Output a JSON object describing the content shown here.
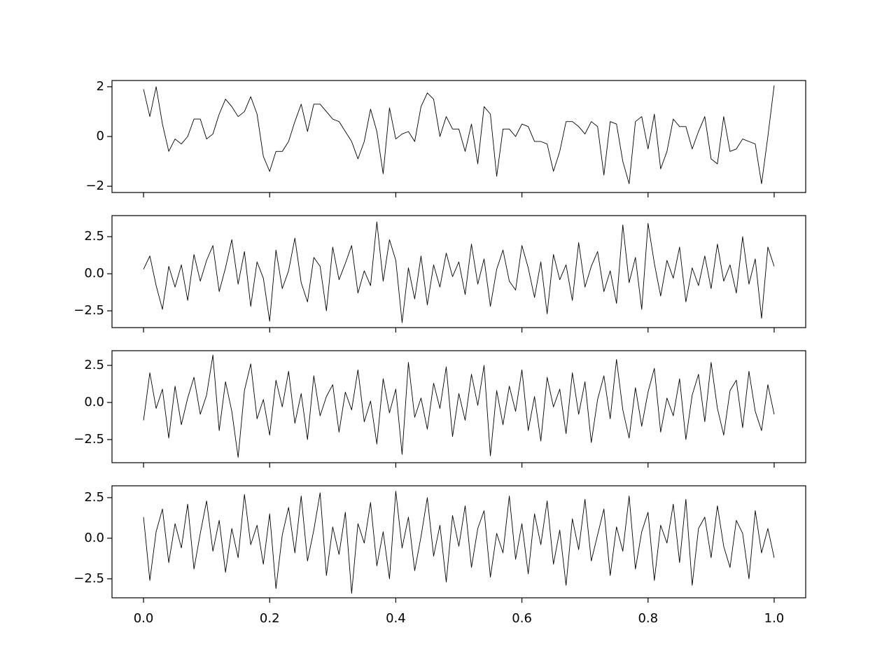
{
  "chart_data": [
    {
      "type": "line",
      "color": "#000000",
      "xlim": [
        -0.05,
        1.05
      ],
      "ylim": [
        -2.25,
        2.25
      ],
      "xticks": [
        0,
        0.2,
        0.4,
        0.6,
        0.8,
        1
      ],
      "xtick_labels": false,
      "yticks": [
        {
          "value": -2,
          "label": "−2"
        },
        0,
        2
      ],
      "x": [
        0,
        0.01,
        0.02,
        0.03,
        0.04,
        0.05,
        0.06,
        0.07,
        0.08,
        0.09,
        0.1,
        0.11,
        0.12,
        0.13,
        0.14,
        0.15,
        0.16,
        0.17,
        0.18,
        0.19,
        0.2,
        0.21,
        0.22,
        0.23,
        0.24,
        0.25,
        0.26,
        0.27,
        0.28,
        0.29,
        0.3,
        0.31,
        0.32,
        0.33,
        0.34,
        0.35,
        0.36,
        0.37,
        0.38,
        0.39,
        0.4,
        0.41,
        0.42,
        0.43,
        0.44,
        0.45,
        0.46,
        0.47,
        0.48,
        0.49,
        0.5,
        0.51,
        0.52,
        0.53,
        0.54,
        0.55,
        0.56,
        0.57,
        0.58,
        0.59,
        0.6,
        0.61,
        0.62,
        0.63,
        0.64,
        0.65,
        0.66,
        0.67,
        0.68,
        0.69,
        0.7,
        0.71,
        0.72,
        0.73,
        0.74,
        0.75,
        0.76,
        0.77,
        0.78,
        0.79,
        0.8,
        0.81,
        0.82,
        0.83,
        0.84,
        0.85,
        0.86,
        0.87,
        0.88,
        0.89,
        0.9,
        0.91,
        0.92,
        0.93,
        0.94,
        0.95,
        0.96,
        0.97,
        0.98,
        0.99,
        1
      ],
      "values": [
        1.9,
        0.8,
        2.0,
        0.5,
        -0.6,
        -0.1,
        -0.3,
        0.0,
        0.7,
        0.7,
        -0.1,
        0.1,
        0.9,
        1.5,
        1.2,
        0.8,
        1.0,
        1.6,
        0.9,
        -0.8,
        -1.4,
        -0.6,
        -0.6,
        -0.2,
        0.6,
        1.3,
        0.2,
        1.3,
        1.3,
        1.0,
        0.7,
        0.6,
        0.2,
        -0.2,
        -0.9,
        -0.2,
        1.1,
        0.2,
        -1.5,
        1.15,
        -0.1,
        0.1,
        0.2,
        -0.2,
        1.2,
        1.75,
        1.5,
        0.0,
        0.8,
        0.3,
        0.3,
        -0.6,
        0.5,
        -1.1,
        1.2,
        0.9,
        -1.6,
        0.3,
        0.3,
        0.0,
        0.5,
        0.4,
        -0.2,
        -0.2,
        -0.3,
        -1.4,
        -0.6,
        0.6,
        0.6,
        0.4,
        0.1,
        0.6,
        0.4,
        -1.55,
        0.6,
        0.5,
        -1.0,
        -1.9,
        0.6,
        0.8,
        -0.5,
        0.9,
        -1.3,
        -0.6,
        0.7,
        0.4,
        0.4,
        -0.5,
        0.2,
        0.8,
        -0.9,
        -1.1,
        0.8,
        -0.6,
        -0.5,
        -0.1,
        -0.2,
        -0.3,
        -1.9,
        0.0,
        2.05
      ]
    },
    {
      "type": "line",
      "color": "#000000",
      "xlim": [
        -0.05,
        1.05
      ],
      "ylim": [
        -3.63,
        3.92
      ],
      "xticks": [
        0,
        0.2,
        0.4,
        0.6,
        0.8,
        1
      ],
      "xtick_labels": false,
      "yticks": [
        {
          "value": -2.5,
          "label": "−2.5"
        },
        {
          "value": 0,
          "label": "0.0"
        },
        2.5
      ],
      "x": [
        0,
        0.01,
        0.02,
        0.03,
        0.04,
        0.05,
        0.06,
        0.07,
        0.08,
        0.09,
        0.1,
        0.11,
        0.12,
        0.13,
        0.14,
        0.15,
        0.16,
        0.17,
        0.18,
        0.19,
        0.2,
        0.21,
        0.22,
        0.23,
        0.24,
        0.25,
        0.26,
        0.27,
        0.28,
        0.29,
        0.3,
        0.31,
        0.32,
        0.33,
        0.34,
        0.35,
        0.36,
        0.37,
        0.38,
        0.39,
        0.4,
        0.41,
        0.42,
        0.43,
        0.44,
        0.45,
        0.46,
        0.47,
        0.48,
        0.49,
        0.5,
        0.51,
        0.52,
        0.53,
        0.54,
        0.55,
        0.56,
        0.57,
        0.58,
        0.59,
        0.6,
        0.61,
        0.62,
        0.63,
        0.64,
        0.65,
        0.66,
        0.67,
        0.68,
        0.69,
        0.7,
        0.71,
        0.72,
        0.73,
        0.74,
        0.75,
        0.76,
        0.77,
        0.78,
        0.79,
        0.8,
        0.81,
        0.82,
        0.83,
        0.84,
        0.85,
        0.86,
        0.87,
        0.88,
        0.89,
        0.9,
        0.91,
        0.92,
        0.93,
        0.94,
        0.95,
        0.96,
        0.97,
        0.98,
        0.99,
        1
      ],
      "values": [
        0.3,
        1.2,
        -0.8,
        -2.4,
        0.5,
        -0.9,
        0.6,
        -1.8,
        1.3,
        -0.5,
        0.9,
        1.9,
        -1.2,
        0.4,
        2.3,
        -0.7,
        1.5,
        -2.2,
        0.8,
        -0.3,
        -3.2,
        1.6,
        -1.0,
        0.2,
        2.4,
        -0.6,
        -1.9,
        1.1,
        0.5,
        -2.5,
        1.8,
        -0.4,
        0.7,
        1.9,
        -1.3,
        0.2,
        -0.8,
        3.5,
        -0.5,
        2.3,
        0.9,
        -3.3,
        0.4,
        -1.7,
        1.2,
        -2.1,
        0.6,
        -0.9,
        1.4,
        -0.2,
        0.8,
        -1.4,
        2.0,
        -0.7,
        1.0,
        -2.2,
        0.3,
        1.6,
        -0.5,
        -1.1,
        1.9,
        0.4,
        -1.6,
        0.8,
        -2.7,
        1.3,
        -0.4,
        0.6,
        -1.8,
        2.1,
        -0.9,
        0.5,
        1.5,
        -1.2,
        0.2,
        -2.0,
        3.3,
        -0.6,
        1.1,
        -2.4,
        3.4,
        0.7,
        -1.5,
        0.9,
        -0.3,
        1.8,
        -1.9,
        0.4,
        -0.8,
        1.2,
        -1.0,
        2.0,
        -0.5,
        0.6,
        -1.3,
        2.5,
        -0.7,
        1.0,
        -3.0,
        1.8,
        0.5
      ]
    },
    {
      "type": "line",
      "color": "#000000",
      "xlim": [
        -0.05,
        1.05
      ],
      "ylim": [
        -4.06,
        3.49
      ],
      "xticks": [
        0,
        0.2,
        0.4,
        0.6,
        0.8,
        1
      ],
      "xtick_labels": false,
      "yticks": [
        {
          "value": -2.5,
          "label": "−2.5"
        },
        {
          "value": 0,
          "label": "0.0"
        },
        2.5
      ],
      "x": [
        0,
        0.01,
        0.02,
        0.03,
        0.04,
        0.05,
        0.06,
        0.07,
        0.08,
        0.09,
        0.1,
        0.11,
        0.12,
        0.13,
        0.14,
        0.15,
        0.16,
        0.17,
        0.18,
        0.19,
        0.2,
        0.21,
        0.22,
        0.23,
        0.24,
        0.25,
        0.26,
        0.27,
        0.28,
        0.29,
        0.3,
        0.31,
        0.32,
        0.33,
        0.34,
        0.35,
        0.36,
        0.37,
        0.38,
        0.39,
        0.4,
        0.41,
        0.42,
        0.43,
        0.44,
        0.45,
        0.46,
        0.47,
        0.48,
        0.49,
        0.5,
        0.51,
        0.52,
        0.53,
        0.54,
        0.55,
        0.56,
        0.57,
        0.58,
        0.59,
        0.6,
        0.61,
        0.62,
        0.63,
        0.64,
        0.65,
        0.66,
        0.67,
        0.68,
        0.69,
        0.7,
        0.71,
        0.72,
        0.73,
        0.74,
        0.75,
        0.76,
        0.77,
        0.78,
        0.79,
        0.8,
        0.81,
        0.82,
        0.83,
        0.84,
        0.85,
        0.86,
        0.87,
        0.88,
        0.89,
        0.9,
        0.91,
        0.92,
        0.93,
        0.94,
        0.95,
        0.96,
        0.97,
        0.98,
        0.99,
        1
      ],
      "values": [
        -1.2,
        2.0,
        -0.4,
        0.9,
        -2.4,
        1.1,
        -1.5,
        0.3,
        1.7,
        -0.8,
        0.5,
        3.2,
        -1.9,
        1.4,
        -0.6,
        -3.7,
        0.8,
        2.6,
        -1.1,
        0.2,
        -2.2,
        1.5,
        -0.3,
        2.1,
        -1.4,
        0.6,
        -2.5,
        1.8,
        -0.9,
        0.4,
        1.2,
        -2.0,
        0.7,
        -0.5,
        2.2,
        -1.3,
        0.1,
        -2.8,
        1.6,
        -0.7,
        0.9,
        -3.5,
        2.7,
        -1.0,
        0.3,
        -1.8,
        1.3,
        -0.4,
        2.4,
        -2.3,
        0.6,
        -1.2,
        1.9,
        -0.2,
        2.5,
        -3.6,
        0.8,
        -1.5,
        1.1,
        -0.6,
        2.2,
        -1.9,
        0.4,
        -2.6,
        1.7,
        -0.3,
        0.9,
        -2.1,
        2.0,
        -0.8,
        1.4,
        -2.7,
        0.2,
        1.8,
        -1.1,
        2.9,
        -0.5,
        -2.4,
        1.0,
        -1.6,
        0.7,
        2.3,
        -2.0,
        0.3,
        -0.9,
        1.6,
        -2.5,
        0.5,
        1.9,
        -1.3,
        2.7,
        -0.4,
        -2.2,
        0.8,
        1.5,
        -1.7,
        2.1,
        -0.6,
        -1.9,
        1.2,
        -0.8
      ]
    },
    {
      "type": "line",
      "color": "#000000",
      "xlim": [
        -0.05,
        1.05
      ],
      "ylim": [
        -3.67,
        3.23
      ],
      "xticks": [
        {
          "value": 0,
          "label": "0.0"
        },
        0.2,
        0.4,
        0.6,
        0.8,
        {
          "value": 1,
          "label": "1.0"
        }
      ],
      "xtick_labels": true,
      "yticks": [
        {
          "value": -2.5,
          "label": "−2.5"
        },
        {
          "value": 0,
          "label": "0.0"
        },
        2.5
      ],
      "x": [
        0,
        0.01,
        0.02,
        0.03,
        0.04,
        0.05,
        0.06,
        0.07,
        0.08,
        0.09,
        0.1,
        0.11,
        0.12,
        0.13,
        0.14,
        0.15,
        0.16,
        0.17,
        0.18,
        0.19,
        0.2,
        0.21,
        0.22,
        0.23,
        0.24,
        0.25,
        0.26,
        0.27,
        0.28,
        0.29,
        0.3,
        0.31,
        0.32,
        0.33,
        0.34,
        0.35,
        0.36,
        0.37,
        0.38,
        0.39,
        0.4,
        0.41,
        0.42,
        0.43,
        0.44,
        0.45,
        0.46,
        0.47,
        0.48,
        0.49,
        0.5,
        0.51,
        0.52,
        0.53,
        0.54,
        0.55,
        0.56,
        0.57,
        0.58,
        0.59,
        0.6,
        0.61,
        0.62,
        0.63,
        0.64,
        0.65,
        0.66,
        0.67,
        0.68,
        0.69,
        0.7,
        0.71,
        0.72,
        0.73,
        0.74,
        0.75,
        0.76,
        0.77,
        0.78,
        0.79,
        0.8,
        0.81,
        0.82,
        0.83,
        0.84,
        0.85,
        0.86,
        0.87,
        0.88,
        0.89,
        0.9,
        0.91,
        0.92,
        0.93,
        0.94,
        0.95,
        0.96,
        0.97,
        0.98,
        0.99,
        1
      ],
      "values": [
        1.3,
        -2.6,
        0.4,
        1.8,
        -1.5,
        0.9,
        -0.6,
        2.1,
        -1.9,
        0.3,
        2.3,
        -0.8,
        1.1,
        -2.1,
        0.6,
        -1.2,
        2.7,
        -0.4,
        0.8,
        -1.6,
        1.5,
        -3.1,
        0.2,
        1.9,
        -0.9,
        2.6,
        -1.4,
        0.5,
        2.8,
        -2.3,
        0.7,
        -1.0,
        1.6,
        -3.4,
        0.9,
        -0.3,
        2.2,
        -1.7,
        0.4,
        -2.5,
        2.9,
        -0.6,
        1.3,
        -2.0,
        0.1,
        2.5,
        -1.1,
        0.8,
        -2.7,
        1.4,
        -0.5,
        2.0,
        -1.8,
        0.6,
        1.7,
        -2.4,
        0.3,
        -0.9,
        2.6,
        -1.3,
        0.9,
        -2.2,
        1.5,
        -0.4,
        2.3,
        -1.6,
        0.5,
        -2.9,
        1.2,
        -0.7,
        2.4,
        -1.4,
        0.2,
        1.8,
        -2.3,
        0.7,
        -0.8,
        2.6,
        -1.9,
        0.4,
        1.6,
        -2.6,
        0.8,
        -0.3,
        2.1,
        -1.5,
        2.4,
        -2.9,
        0.6,
        1.3,
        -1.2,
        2.0,
        -0.5,
        -1.8,
        1.1,
        0.3,
        -2.5,
        1.7,
        -0.9,
        0.6,
        -1.2
      ]
    }
  ]
}
